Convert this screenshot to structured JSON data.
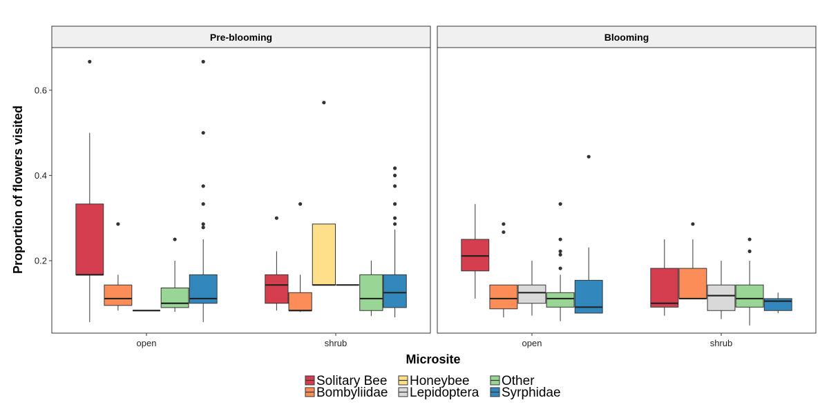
{
  "chart_data": {
    "type": "boxplot",
    "xlabel": "Microsite",
    "ylabel": "Proportion of flowers visited",
    "ylim": [
      0.03,
      0.7
    ],
    "yticks": [
      0.2,
      0.4,
      0.6
    ],
    "ytick_labels": [
      "0.2",
      "0.4",
      "0.6"
    ],
    "categories": [
      "open",
      "shrub"
    ],
    "facets": [
      "Pre-blooming",
      "Blooming"
    ],
    "legend_position": "bottom",
    "series": [
      {
        "name": "Solitary Bee",
        "color": "#D53E4F"
      },
      {
        "name": "Bombyliidae",
        "color": "#FC8D59"
      },
      {
        "name": "Honeybee",
        "color": "#FEE08B"
      },
      {
        "name": "Lepidoptera",
        "color": "#D9D9D9"
      },
      {
        "name": "Other",
        "color": "#99D594"
      },
      {
        "name": "Syrphidae",
        "color": "#3288BD"
      }
    ],
    "legend_order": [
      "Solitary Bee",
      "Bombyliidae",
      "Honeybee",
      "Lepidoptera",
      "Other",
      "Syrphidae"
    ],
    "panels": [
      {
        "facet": "Pre-blooming",
        "groups": [
          {
            "category": "open",
            "boxes": [
              {
                "series": "Solitary Bee",
                "min": 0.056,
                "q1": 0.167,
                "median": 0.167,
                "q3": 0.333,
                "max": 0.5,
                "outliers": [
                  0.667
                ]
              },
              {
                "series": "Bombyliidae",
                "min": 0.083,
                "q1": 0.095,
                "median": 0.111,
                "q3": 0.143,
                "max": 0.167,
                "outliers": [
                  0.286
                ]
              },
              {
                "series": "Lepidoptera",
                "min": 0.083,
                "q1": 0.083,
                "median": 0.083,
                "q3": 0.083,
                "max": 0.083,
                "outliers": []
              },
              {
                "series": "Other",
                "min": 0.08,
                "q1": 0.09,
                "median": 0.1,
                "q3": 0.136,
                "max": 0.2,
                "outliers": [
                  0.25
                ]
              },
              {
                "series": "Syrphidae",
                "min": 0.056,
                "q1": 0.1,
                "median": 0.111,
                "q3": 0.167,
                "max": 0.25,
                "outliers": [
                  0.667,
                  0.5,
                  0.375,
                  0.333,
                  0.286,
                  0.278
                ]
              }
            ]
          },
          {
            "category": "shrub",
            "boxes": [
              {
                "series": "Solitary Bee",
                "min": 0.083,
                "q1": 0.1,
                "median": 0.143,
                "q3": 0.167,
                "max": 0.222,
                "outliers": [
                  0.3
                ]
              },
              {
                "series": "Bombyliidae",
                "min": 0.08,
                "q1": 0.083,
                "median": 0.083,
                "q3": 0.125,
                "max": 0.167,
                "outliers": [
                  0.333
                ]
              },
              {
                "series": "Honeybee",
                "min": 0.143,
                "q1": 0.143,
                "median": 0.143,
                "q3": 0.286,
                "max": 0.286,
                "outliers": [
                  0.571
                ]
              },
              {
                "series": "Lepidoptera",
                "min": 0.143,
                "q1": 0.143,
                "median": 0.143,
                "q3": 0.143,
                "max": 0.143,
                "outliers": []
              },
              {
                "series": "Other",
                "min": 0.07,
                "q1": 0.083,
                "median": 0.111,
                "q3": 0.167,
                "max": 0.2,
                "outliers": []
              },
              {
                "series": "Syrphidae",
                "min": 0.067,
                "q1": 0.09,
                "median": 0.125,
                "q3": 0.167,
                "max": 0.273,
                "outliers": [
                  0.417,
                  0.4,
                  0.375,
                  0.333,
                  0.3,
                  0.286
                ]
              }
            ]
          }
        ]
      },
      {
        "facet": "Blooming",
        "groups": [
          {
            "category": "open",
            "boxes": [
              {
                "series": "Solitary Bee",
                "min": 0.111,
                "q1": 0.176,
                "median": 0.211,
                "q3": 0.25,
                "max": 0.333,
                "outliers": []
              },
              {
                "series": "Bombyliidae",
                "min": 0.067,
                "q1": 0.087,
                "median": 0.111,
                "q3": 0.143,
                "max": 0.143,
                "outliers": [
                  0.286,
                  0.267
                ]
              },
              {
                "series": "Lepidoptera",
                "min": 0.071,
                "q1": 0.1,
                "median": 0.125,
                "q3": 0.143,
                "max": 0.2,
                "outliers": []
              },
              {
                "series": "Other",
                "min": 0.058,
                "q1": 0.091,
                "median": 0.111,
                "q3": 0.125,
                "max": 0.167,
                "outliers": [
                  0.333,
                  0.25,
                  0.222,
                  0.214,
                  0.182
                ]
              },
              {
                "series": "Syrphidae",
                "min": 0.077,
                "q1": 0.077,
                "median": 0.091,
                "q3": 0.154,
                "max": 0.231,
                "outliers": [
                  0.444
                ]
              }
            ]
          },
          {
            "category": "shrub",
            "boxes": [
              {
                "series": "Solitary Bee",
                "min": 0.071,
                "q1": 0.091,
                "median": 0.1,
                "q3": 0.182,
                "max": 0.25,
                "outliers": []
              },
              {
                "series": "Bombyliidae",
                "min": 0.111,
                "q1": 0.111,
                "median": 0.111,
                "q3": 0.182,
                "max": 0.25,
                "outliers": [
                  0.286
                ]
              },
              {
                "series": "Lepidoptera",
                "min": 0.063,
                "q1": 0.083,
                "median": 0.118,
                "q3": 0.143,
                "max": 0.2,
                "outliers": []
              },
              {
                "series": "Other",
                "min": 0.048,
                "q1": 0.091,
                "median": 0.111,
                "q3": 0.143,
                "max": 0.2,
                "outliers": [
                  0.25,
                  0.222
                ]
              },
              {
                "series": "Syrphidae",
                "min": 0.077,
                "q1": 0.083,
                "median": 0.105,
                "q3": 0.111,
                "max": 0.125,
                "outliers": []
              }
            ]
          }
        ]
      }
    ]
  }
}
